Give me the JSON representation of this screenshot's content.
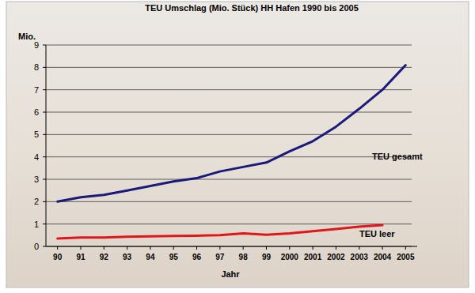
{
  "chart_data": {
    "type": "line",
    "title": "TEU Umschlag (Mio. Stück) HH Hafen 1990 bis 2005",
    "y_label": "Mio.",
    "x_label": "Jahr",
    "categories": [
      "90",
      "91",
      "92",
      "93",
      "94",
      "95",
      "96",
      "97",
      "98",
      "99",
      "2000",
      "2001",
      "2002",
      "2003",
      "2004",
      "2005"
    ],
    "series": [
      {
        "name": "TEU gesamt",
        "color": "#1a1a7a",
        "values": [
          2.0,
          2.2,
          2.3,
          2.5,
          2.7,
          2.9,
          3.05,
          3.35,
          3.55,
          3.75,
          4.25,
          4.7,
          5.35,
          6.15,
          7.0,
          8.1
        ]
      },
      {
        "name": "TEU leer",
        "color": "#e0161b",
        "values": [
          0.35,
          0.4,
          0.4,
          0.43,
          0.45,
          0.47,
          0.48,
          0.5,
          0.58,
          0.52,
          0.58,
          0.68,
          0.78,
          0.88,
          0.95,
          null
        ]
      }
    ],
    "ylim": [
      0,
      9
    ],
    "yticks": [
      0,
      1,
      2,
      3,
      4,
      5,
      6,
      7,
      8,
      9
    ],
    "grid": true
  }
}
